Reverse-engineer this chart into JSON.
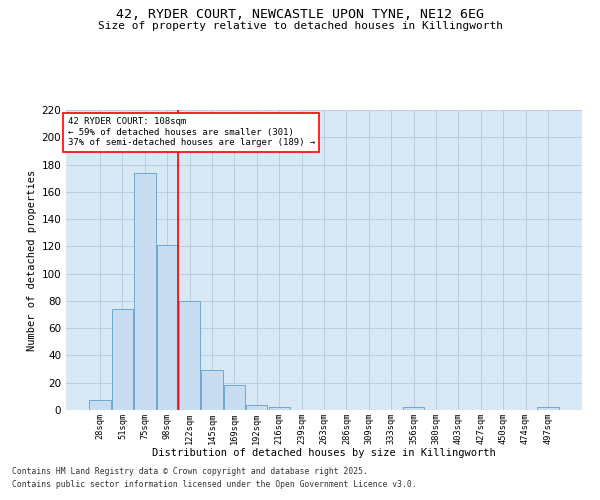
{
  "title_line1": "42, RYDER COURT, NEWCASTLE UPON TYNE, NE12 6EG",
  "title_line2": "Size of property relative to detached houses in Killingworth",
  "xlabel": "Distribution of detached houses by size in Killingworth",
  "ylabel": "Number of detached properties",
  "categories": [
    "28sqm",
    "51sqm",
    "75sqm",
    "98sqm",
    "122sqm",
    "145sqm",
    "169sqm",
    "192sqm",
    "216sqm",
    "239sqm",
    "263sqm",
    "286sqm",
    "309sqm",
    "333sqm",
    "356sqm",
    "380sqm",
    "403sqm",
    "427sqm",
    "450sqm",
    "474sqm",
    "497sqm"
  ],
  "values": [
    7,
    74,
    174,
    121,
    80,
    29,
    18,
    4,
    2,
    0,
    0,
    0,
    0,
    0,
    2,
    0,
    0,
    0,
    0,
    0,
    2
  ],
  "bar_color": "#c9ddf0",
  "bar_edge_color": "#6aaad4",
  "grid_color": "#b8c8dc",
  "bg_color": "#d8e8f4",
  "fig_color": "#ffffff",
  "red_line_x": 3.5,
  "annotation_title": "42 RYDER COURT: 108sqm",
  "annotation_line1": "← 59% of detached houses are smaller (301)",
  "annotation_line2": "37% of semi-detached houses are larger (189) →",
  "ylim": [
    0,
    220
  ],
  "yticks": [
    0,
    20,
    40,
    60,
    80,
    100,
    120,
    140,
    160,
    180,
    200,
    220
  ],
  "footnote1": "Contains HM Land Registry data © Crown copyright and database right 2025.",
  "footnote2": "Contains public sector information licensed under the Open Government Licence v3.0."
}
